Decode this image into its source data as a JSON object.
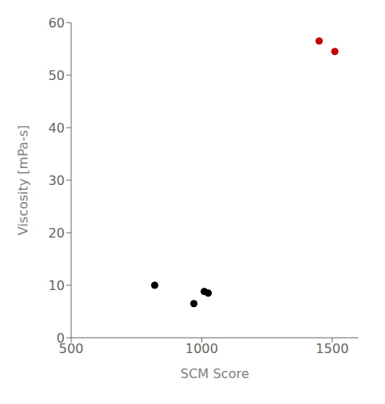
{
  "chart_data": {
    "type": "scatter",
    "xlabel": "SCM Score",
    "ylabel": "Viscosity [mPa-s]",
    "xlim": [
      500,
      1600
    ],
    "ylim": [
      0,
      60
    ],
    "xticks": [
      500,
      1000,
      1500
    ],
    "yticks": [
      0,
      10,
      20,
      30,
      40,
      50,
      60
    ],
    "grid": false,
    "series": [
      {
        "color": "#000000",
        "x": [
          820,
          970,
          1010,
          1025
        ],
        "values": [
          10.0,
          6.5,
          8.8,
          8.5
        ]
      },
      {
        "color": "#cc0000",
        "x": [
          1450,
          1510
        ],
        "values": [
          56.5,
          54.5
        ]
      }
    ]
  }
}
